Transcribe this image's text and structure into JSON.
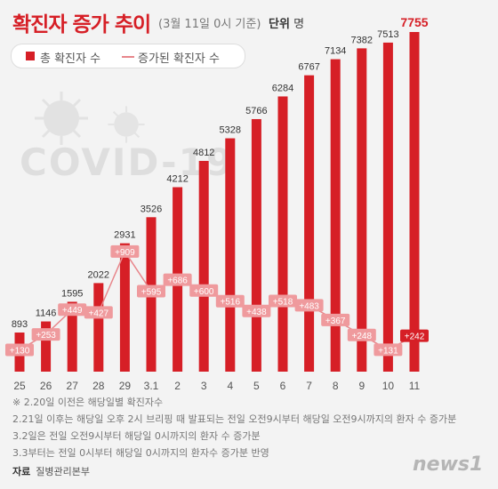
{
  "header": {
    "title": "확진자 증가 추이",
    "subtitle": "(3월 11일 0시 기준)",
    "unit_label": "단위",
    "unit_value": "명"
  },
  "legend": {
    "bar_label": "총 확진자 수",
    "line_label": "증가된 확진자 수"
  },
  "watermark": "COVID-19",
  "colors": {
    "bar": "#d61f26",
    "line": "#e8868b",
    "label_bg": "#ef9a9d",
    "background": "#f3f3f3"
  },
  "chart_data": {
    "type": "bar",
    "categories": [
      "25",
      "26",
      "27",
      "28",
      "29",
      "3.1",
      "2",
      "3",
      "4",
      "5",
      "6",
      "7",
      "8",
      "9",
      "10",
      "11"
    ],
    "series": [
      {
        "name": "총 확진자 수",
        "values": [
          893,
          1146,
          1595,
          2022,
          2931,
          3526,
          4212,
          4812,
          5328,
          5766,
          6284,
          6767,
          7134,
          7382,
          7513,
          7755
        ]
      },
      {
        "name": "증가된 확진자 수",
        "type": "line",
        "values": [
          130,
          253,
          449,
          427,
          909,
          595,
          686,
          600,
          516,
          438,
          518,
          483,
          367,
          248,
          131,
          242
        ],
        "labels": [
          "+130",
          "+253",
          "+449",
          "+427",
          "+909",
          "+595",
          "+686",
          "+600",
          "+516",
          "+438",
          "+518",
          "+483",
          "+367",
          "+248",
          "+131",
          "+242"
        ]
      }
    ],
    "ylim": [
      0,
      7755
    ],
    "grid": false,
    "legend": "top-left"
  },
  "notes": [
    "※ 2.20일 이전은 해당일별 확진자수",
    "2.21일 이후는 해당일 오후 2시 브리핑 때 발표되는 전일 오전9시부터 해당일 오전9시까지의 환자 수 증가분",
    "3.2일은 전일 오전9시부터 해당일 0시까지의 환자 수 증가분",
    "3.3부터는 전일 0시부터 해당일 0시까지의 환자수 증가분 반영"
  ],
  "source": {
    "label": "자료",
    "value": "질병관리본부"
  },
  "logo": "news1"
}
